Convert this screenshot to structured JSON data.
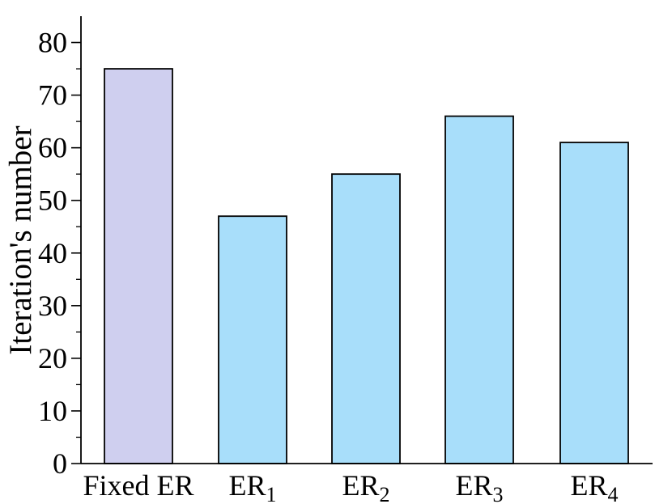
{
  "chart_data": {
    "type": "bar",
    "categories": [
      {
        "base": "Fixed ER",
        "sub": ""
      },
      {
        "base": "ER",
        "sub": "1"
      },
      {
        "base": "ER",
        "sub": "2"
      },
      {
        "base": "ER",
        "sub": "3"
      },
      {
        "base": "ER",
        "sub": "4"
      }
    ],
    "values": [
      75,
      47,
      55,
      66,
      61
    ],
    "title": "",
    "xlabel": "",
    "ylabel": "Iteration's number",
    "ylim": [
      0,
      85
    ],
    "yticks": [
      0,
      10,
      20,
      30,
      40,
      50,
      60,
      70,
      80
    ],
    "minor_y_step": 5,
    "grid": false,
    "colors": [
      "#CFCFEF",
      "#A8DEFA"
    ]
  }
}
